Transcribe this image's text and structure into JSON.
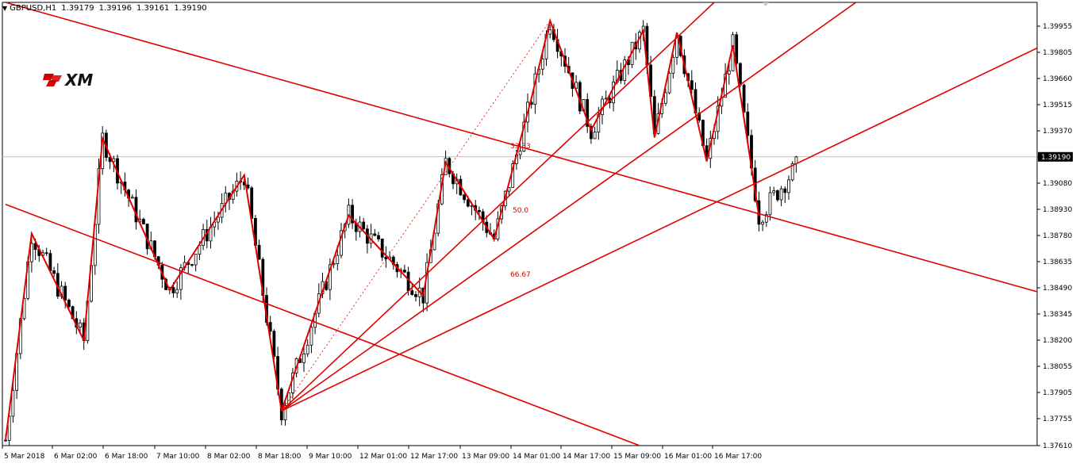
{
  "header": {
    "symbol": "GBPUSD,H1",
    "open": "1.39179",
    "high": "1.39196",
    "low": "1.39161",
    "close": "1.39190"
  },
  "logo": {
    "text": "XM"
  },
  "current_price": "1.39190",
  "fib_labels": [
    "33.33",
    "50.0",
    "66.67"
  ],
  "colors": {
    "candles": "#000000",
    "lines": "#e00000",
    "axis": "#000000",
    "price_line": "#c0c0c0"
  },
  "chart_data": {
    "type": "candlestick",
    "title": "",
    "y_ticks": [
      "1.39955",
      "1.39805",
      "1.39660",
      "1.39515",
      "1.39370",
      "1.39225",
      "1.39080",
      "1.38930",
      "1.38780",
      "1.38635",
      "1.38490",
      "1.38345",
      "1.38200",
      "1.38055",
      "1.37905",
      "1.37755",
      "1.37610"
    ],
    "x_ticks": [
      "5 Mar 2018",
      "6 Mar 02:00",
      "6 Mar 18:00",
      "7 Mar 10:00",
      "8 Mar 02:00",
      "8 Mar 18:00",
      "9 Mar 10:00",
      "12 Mar 01:00",
      "12 Mar 17:00",
      "13 Mar 09:00",
      "14 Mar 01:00",
      "14 Mar 17:00",
      "15 Mar 09:00",
      "16 Mar 01:00",
      "16 Mar 17:00"
    ],
    "ylim": [
      1.3761,
      1.40035
    ],
    "zigzag": [
      {
        "t": 0,
        "p": 1.3764
      },
      {
        "t": 7,
        "p": 1.3877
      },
      {
        "t": 21,
        "p": 1.38185
      },
      {
        "t": 26,
        "p": 1.3929
      },
      {
        "t": 44,
        "p": 1.3846
      },
      {
        "t": 64,
        "p": 1.3909
      },
      {
        "t": 74,
        "p": 1.378
      },
      {
        "t": 92,
        "p": 1.3887
      },
      {
        "t": 112,
        "p": 1.3843
      },
      {
        "t": 118,
        "p": 1.3916
      },
      {
        "t": 131,
        "p": 1.3874
      },
      {
        "t": 141,
        "p": 1.3951
      },
      {
        "t": 146,
        "p": 1.39935
      },
      {
        "t": 157,
        "p": 1.39335
      },
      {
        "t": 171,
        "p": 1.3988
      },
      {
        "t": 174,
        "p": 1.39295
      },
      {
        "t": 180,
        "p": 1.3987
      },
      {
        "t": 188,
        "p": 1.39165
      },
      {
        "t": 195,
        "p": 1.398
      },
      {
        "t": 202,
        "p": 1.38865
      }
    ],
    "fan_lines": [
      {
        "from": {
          "t": 74,
          "p": 1.378
        },
        "to": {
          "t": 190,
          "p": 1.40035
        }
      },
      {
        "from": {
          "t": 74,
          "p": 1.378
        },
        "to": {
          "t": 228,
          "p": 1.40035
        }
      },
      {
        "from": {
          "t": 74,
          "p": 1.378
        },
        "to": {
          "t": 297,
          "p": 1.39985
        }
      }
    ],
    "trend_lines": [
      {
        "from": {
          "t": 0,
          "p": 1.40035
        },
        "to": {
          "t": 297,
          "p": 1.38335
        }
      },
      {
        "from": {
          "t": 0,
          "p": 1.3893
        },
        "to": {
          "t": 170,
          "p": 1.3761
        }
      },
      {
        "from": {
          "t": 283,
          "p": 1.40035
        },
        "to": {
          "t": 297,
          "p": 1.3999
        }
      }
    ],
    "current_price": 1.3919,
    "bars_total": 213
  }
}
